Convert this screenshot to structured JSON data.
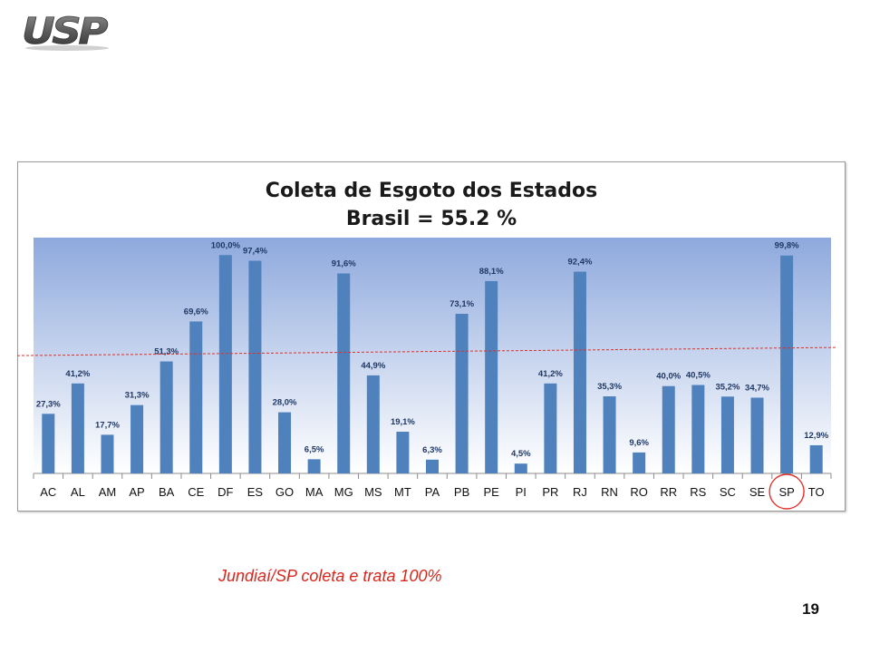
{
  "logo": {
    "text": "USP"
  },
  "caption": "Jundiaí/SP coleta e trata 100%",
  "page_number": "19",
  "colors": {
    "bar": "#4f81bd",
    "plot_top": "#8ea9dd",
    "plot_bottom": "#ffffff",
    "reference_line": "#e0302a",
    "highlight": "#e0302a",
    "caption": "#d9261c"
  },
  "chart_data": {
    "type": "bar",
    "title": [
      "Coleta de Esgoto dos Estados",
      "Brasil = 55.2 %"
    ],
    "xlabel": "",
    "ylabel": "",
    "categories": [
      "AC",
      "AL",
      "AM",
      "AP",
      "BA",
      "CE",
      "DF",
      "ES",
      "GO",
      "MA",
      "MG",
      "MS",
      "MT",
      "PA",
      "PB",
      "PE",
      "PI",
      "PR",
      "RJ",
      "RN",
      "RO",
      "RR",
      "RS",
      "SC",
      "SE",
      "SP",
      "TO"
    ],
    "values": [
      27.3,
      41.2,
      17.7,
      31.3,
      51.3,
      69.6,
      100.0,
      97.4,
      28.0,
      6.5,
      91.6,
      44.9,
      19.1,
      6.3,
      73.1,
      88.1,
      4.5,
      41.2,
      92.4,
      35.3,
      9.6,
      40.0,
      40.5,
      35.2,
      34.7,
      99.8,
      12.9
    ],
    "value_labels": [
      "27,3%",
      "41,2%",
      "17,7%",
      "31,3%",
      "51,3%",
      "69,6%",
      "100,0%",
      "97,4%",
      "28,0%",
      "6,5%",
      "91,6%",
      "44,9%",
      "19,1%",
      "6,3%",
      "73,1%",
      "88,1%",
      "4,5%",
      "41,2%",
      "92,4%",
      "35,3%",
      "9,6%",
      "40,0%",
      "40,5%",
      "35,2%",
      "34,7%",
      "99,8%",
      "12,9%"
    ],
    "ylim": [
      0,
      108
    ],
    "grid": false,
    "reference_line": 55.2,
    "highlighted_category": "SP"
  }
}
